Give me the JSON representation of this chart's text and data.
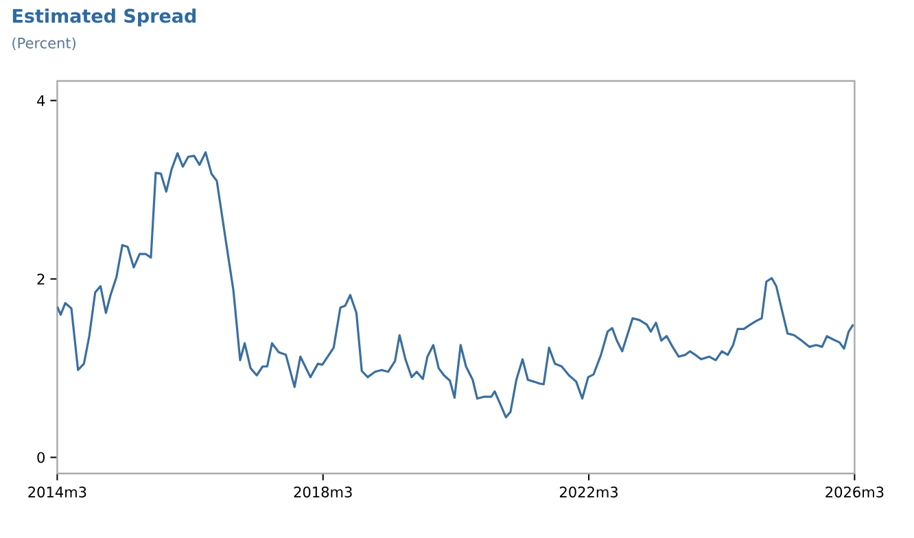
{
  "chart_data": {
    "type": "line",
    "title": "Estimated Spread",
    "subtitle": "(Percent)",
    "xlim": [
      "2014-03",
      "2026-03"
    ],
    "ylim": [
      -0.18,
      4.22
    ],
    "xticks": [
      {
        "value": "2014-03",
        "label": "2014m3"
      },
      {
        "value": "2018-03",
        "label": "2018m3"
      },
      {
        "value": "2022-03",
        "label": "2022m3"
      },
      {
        "value": "2026-03",
        "label": "2026m3"
      }
    ],
    "yticks": [
      0,
      2,
      4
    ],
    "series": [
      {
        "color": "#3a6fa0",
        "x": [
          "2014-03-01",
          "2014-03-20",
          "2014-04-15",
          "2014-05-18",
          "2014-06-24",
          "2014-07-26",
          "2014-08-25",
          "2014-09-27",
          "2014-10-26",
          "2014-11-25",
          "2014-12-20",
          "2015-01-22",
          "2015-02-24",
          "2015-03-23",
          "2015-04-26",
          "2015-05-28",
          "2015-07-01",
          "2015-07-29",
          "2015-08-25",
          "2015-09-23",
          "2015-10-22",
          "2015-11-21",
          "2015-12-23",
          "2016-01-22",
          "2016-02-21",
          "2016-03-23",
          "2016-04-22",
          "2016-05-25",
          "2016-06-27",
          "2016-07-26",
          "2016-09-16",
          "2016-10-26",
          "2016-12-02",
          "2016-12-27",
          "2017-01-29",
          "2017-03-02",
          "2017-04-04",
          "2017-04-29",
          "2017-05-25",
          "2017-07-01",
          "2017-08-10",
          "2017-09-27",
          "2017-10-29",
          "2017-12-23",
          "2018-02-03",
          "2018-02-28",
          "2018-04-29",
          "2018-06-05",
          "2018-07-01",
          "2018-07-29",
          "2018-09-02",
          "2018-10-01",
          "2018-11-03",
          "2018-12-13",
          "2019-01-19",
          "2019-02-24",
          "2019-04-01",
          "2019-04-26",
          "2019-05-28",
          "2019-07-01",
          "2019-07-29",
          "2019-09-02",
          "2019-09-27",
          "2019-10-29",
          "2019-11-28",
          "2019-12-27",
          "2020-01-29",
          "2020-02-24",
          "2020-03-27",
          "2020-04-26",
          "2020-06-02",
          "2020-06-27",
          "2020-08-03",
          "2020-09-13",
          "2020-10-01",
          "2020-11-03",
          "2020-12-02",
          "2020-12-27",
          "2021-01-29",
          "2021-03-02",
          "2021-04-01",
          "2021-05-03",
          "2021-06-02",
          "2021-06-27",
          "2021-07-26",
          "2021-08-28",
          "2021-10-04",
          "2021-11-14",
          "2021-12-23",
          "2022-01-26",
          "2022-02-28",
          "2022-03-27",
          "2022-05-07",
          "2022-06-13",
          "2022-07-08",
          "2022-08-03",
          "2022-09-02",
          "2022-10-29",
          "2022-12-05",
          "2023-01-15",
          "2023-02-07",
          "2023-03-05",
          "2023-04-04",
          "2023-05-03",
          "2023-06-05",
          "2023-07-08",
          "2023-08-14",
          "2023-09-09",
          "2023-10-08",
          "2023-11-10",
          "2023-12-23",
          "2024-01-29",
          "2024-03-02",
          "2024-04-04",
          "2024-05-03",
          "2024-05-28",
          "2024-07-01",
          "2024-08-07",
          "2024-09-09",
          "2024-10-08",
          "2024-11-03",
          "2024-12-02",
          "2024-12-27",
          "2025-01-29",
          "2025-02-28",
          "2025-04-04",
          "2025-05-14",
          "2025-06-27",
          "2025-08-03",
          "2025-09-05",
          "2025-10-01",
          "2025-11-07",
          "2025-12-09",
          "2026-01-04",
          "2026-01-29",
          "2026-02-24"
        ],
        "values": [
          1.69,
          1.6,
          1.73,
          1.67,
          0.98,
          1.05,
          1.36,
          1.85,
          1.92,
          1.62,
          1.82,
          2.02,
          2.38,
          2.36,
          2.13,
          2.28,
          2.28,
          2.24,
          3.19,
          3.18,
          2.98,
          3.23,
          3.41,
          3.26,
          3.37,
          3.38,
          3.28,
          3.42,
          3.18,
          3.1,
          2.41,
          1.87,
          1.09,
          1.28,
          1.0,
          0.92,
          1.02,
          1.02,
          1.28,
          1.18,
          1.15,
          0.79,
          1.13,
          0.9,
          1.05,
          1.04,
          1.23,
          1.68,
          1.7,
          1.82,
          1.62,
          0.97,
          0.9,
          0.96,
          0.98,
          0.96,
          1.08,
          1.37,
          1.1,
          0.9,
          0.96,
          0.88,
          1.13,
          1.26,
          1.0,
          0.92,
          0.86,
          0.67,
          1.26,
          1.02,
          0.87,
          0.66,
          0.68,
          0.68,
          0.74,
          0.59,
          0.45,
          0.51,
          0.87,
          1.1,
          0.87,
          0.85,
          0.83,
          0.82,
          1.23,
          1.05,
          1.02,
          0.92,
          0.85,
          0.66,
          0.9,
          0.93,
          1.15,
          1.41,
          1.45,
          1.31,
          1.19,
          1.56,
          1.54,
          1.49,
          1.41,
          1.51,
          1.31,
          1.36,
          1.24,
          1.13,
          1.15,
          1.19,
          1.15,
          1.1,
          1.13,
          1.09,
          1.19,
          1.15,
          1.26,
          1.44,
          1.44,
          1.49,
          1.53,
          1.56,
          1.97,
          2.01,
          1.92,
          1.64,
          1.39,
          1.37,
          1.31,
          1.24,
          1.26,
          1.24,
          1.36,
          1.32,
          1.29,
          1.22,
          1.41,
          1.49
        ]
      }
    ]
  }
}
